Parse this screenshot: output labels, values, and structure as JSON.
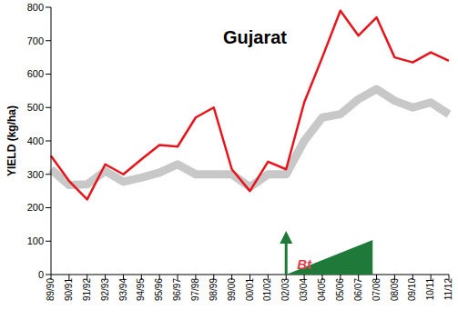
{
  "chart_data": {
    "type": "line",
    "title": "Gujarat",
    "y_label": "YIELD (kg/ha)",
    "categories": [
      "89/90",
      "90/91",
      "91/92",
      "92/93",
      "93/94",
      "94/95",
      "95/96",
      "96/97",
      "97/98",
      "98/99",
      "99/00",
      "00/01",
      "01/02",
      "02/03",
      "03/04",
      "04/05",
      "05/06",
      "06/07",
      "07/08",
      "08/09",
      "09/10",
      "10/11",
      "11/12"
    ],
    "series": [
      {
        "color": "#c8c8c8",
        "values": [
          315,
          268,
          270,
          310,
          278,
          290,
          305,
          330,
          300,
          300,
          300,
          262,
          300,
          300,
          400,
          470,
          480,
          525,
          555,
          520,
          500,
          515,
          480
        ]
      },
      {
        "color": "#e8141c",
        "values": [
          355,
          280,
          225,
          330,
          300,
          345,
          388,
          383,
          470,
          500,
          315,
          250,
          338,
          315,
          515,
          650,
          790,
          715,
          770,
          650,
          635,
          665,
          640
        ]
      }
    ],
    "ylim": [
      0,
      800
    ],
    "yticks": [
      0,
      100,
      200,
      300,
      400,
      500,
      600,
      700,
      800
    ],
    "grid": false,
    "annotation": {
      "text": "Bt",
      "category": "02/03"
    }
  }
}
